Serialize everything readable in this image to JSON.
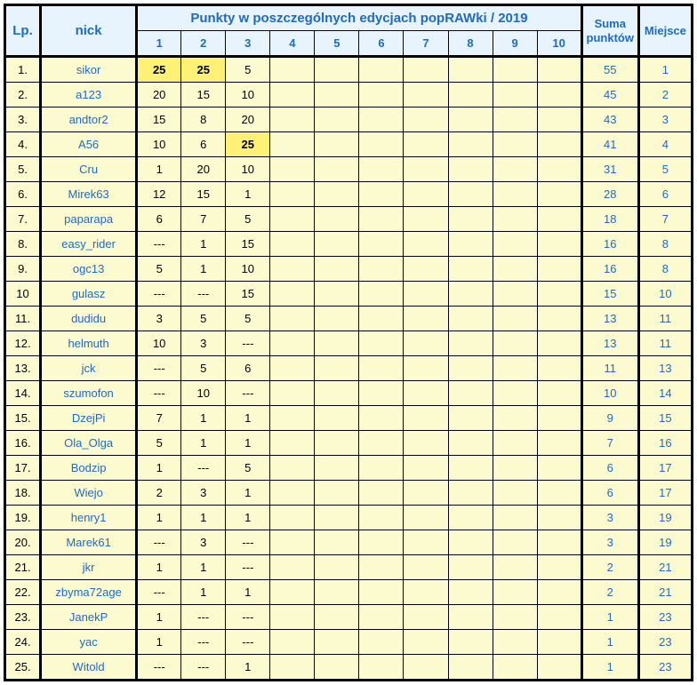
{
  "headers": {
    "lp": "Lp.",
    "nick": "nick",
    "editions_title": "Punkty w poszczególnych edycjach popRAWki / 2019",
    "editions": [
      "1",
      "2",
      "3",
      "4",
      "5",
      "6",
      "7",
      "8",
      "9",
      "10"
    ],
    "sum": "Suma punktów",
    "place": "Miejsce"
  },
  "colors": {
    "header_bg": "#e7f3fd",
    "header_fg": "#1f6bbf",
    "cell_bg": "#fcfbcf",
    "highlight_bg": "#fff176",
    "border": "#000000"
  },
  "col_widths": {
    "lp": 40,
    "nick": 108,
    "edition": 50,
    "sum": 64,
    "place": 60
  },
  "rows": [
    {
      "lp": "1.",
      "nick": "sikor",
      "pts": [
        "25",
        "25",
        "5",
        "",
        "",
        "",
        "",
        "",
        "",
        ""
      ],
      "hl": [
        true,
        true,
        false,
        false,
        false,
        false,
        false,
        false,
        false,
        false
      ],
      "sum": "55",
      "place": "1"
    },
    {
      "lp": "2.",
      "nick": "a123",
      "pts": [
        "20",
        "15",
        "10",
        "",
        "",
        "",
        "",
        "",
        "",
        ""
      ],
      "hl": [
        false,
        false,
        false,
        false,
        false,
        false,
        false,
        false,
        false,
        false
      ],
      "sum": "45",
      "place": "2"
    },
    {
      "lp": "3.",
      "nick": "andtor2",
      "pts": [
        "15",
        "8",
        "20",
        "",
        "",
        "",
        "",
        "",
        "",
        ""
      ],
      "hl": [
        false,
        false,
        false,
        false,
        false,
        false,
        false,
        false,
        false,
        false
      ],
      "sum": "43",
      "place": "3"
    },
    {
      "lp": "4.",
      "nick": "A56",
      "pts": [
        "10",
        "6",
        "25",
        "",
        "",
        "",
        "",
        "",
        "",
        ""
      ],
      "hl": [
        false,
        false,
        true,
        false,
        false,
        false,
        false,
        false,
        false,
        false
      ],
      "sum": "41",
      "place": "4"
    },
    {
      "lp": "5.",
      "nick": "Cru",
      "pts": [
        "1",
        "20",
        "10",
        "",
        "",
        "",
        "",
        "",
        "",
        ""
      ],
      "hl": [
        false,
        false,
        false,
        false,
        false,
        false,
        false,
        false,
        false,
        false
      ],
      "sum": "31",
      "place": "5"
    },
    {
      "lp": "6.",
      "nick": "Mirek63",
      "pts": [
        "12",
        "15",
        "1",
        "",
        "",
        "",
        "",
        "",
        "",
        ""
      ],
      "hl": [
        false,
        false,
        false,
        false,
        false,
        false,
        false,
        false,
        false,
        false
      ],
      "sum": "28",
      "place": "6"
    },
    {
      "lp": "7.",
      "nick": "paparapa",
      "pts": [
        "6",
        "7",
        "5",
        "",
        "",
        "",
        "",
        "",
        "",
        ""
      ],
      "hl": [
        false,
        false,
        false,
        false,
        false,
        false,
        false,
        false,
        false,
        false
      ],
      "sum": "18",
      "place": "7"
    },
    {
      "lp": "8.",
      "nick": "easy_rider",
      "pts": [
        "---",
        "1",
        "15",
        "",
        "",
        "",
        "",
        "",
        "",
        ""
      ],
      "hl": [
        false,
        false,
        false,
        false,
        false,
        false,
        false,
        false,
        false,
        false
      ],
      "sum": "16",
      "place": "8"
    },
    {
      "lp": "9.",
      "nick": "ogc13",
      "pts": [
        "5",
        "1",
        "10",
        "",
        "",
        "",
        "",
        "",
        "",
        ""
      ],
      "hl": [
        false,
        false,
        false,
        false,
        false,
        false,
        false,
        false,
        false,
        false
      ],
      "sum": "16",
      "place": "8"
    },
    {
      "lp": "10",
      "nick": "gulasz",
      "pts": [
        "---",
        "---",
        "15",
        "",
        "",
        "",
        "",
        "",
        "",
        ""
      ],
      "hl": [
        false,
        false,
        false,
        false,
        false,
        false,
        false,
        false,
        false,
        false
      ],
      "sum": "15",
      "place": "10"
    },
    {
      "lp": "11.",
      "nick": "dudidu",
      "pts": [
        "3",
        "5",
        "5",
        "",
        "",
        "",
        "",
        "",
        "",
        ""
      ],
      "hl": [
        false,
        false,
        false,
        false,
        false,
        false,
        false,
        false,
        false,
        false
      ],
      "sum": "13",
      "place": "11"
    },
    {
      "lp": "12.",
      "nick": "helmuth",
      "pts": [
        "10",
        "3",
        "---",
        "",
        "",
        "",
        "",
        "",
        "",
        ""
      ],
      "hl": [
        false,
        false,
        false,
        false,
        false,
        false,
        false,
        false,
        false,
        false
      ],
      "sum": "13",
      "place": "11"
    },
    {
      "lp": "13.",
      "nick": "jck",
      "pts": [
        "---",
        "5",
        "6",
        "",
        "",
        "",
        "",
        "",
        "",
        ""
      ],
      "hl": [
        false,
        false,
        false,
        false,
        false,
        false,
        false,
        false,
        false,
        false
      ],
      "sum": "11",
      "place": "13"
    },
    {
      "lp": "14.",
      "nick": "szumofon",
      "pts": [
        "---",
        "10",
        "---",
        "",
        "",
        "",
        "",
        "",
        "",
        ""
      ],
      "hl": [
        false,
        false,
        false,
        false,
        false,
        false,
        false,
        false,
        false,
        false
      ],
      "sum": "10",
      "place": "14"
    },
    {
      "lp": "15.",
      "nick": "DzejPi",
      "pts": [
        "7",
        "1",
        "1",
        "",
        "",
        "",
        "",
        "",
        "",
        ""
      ],
      "hl": [
        false,
        false,
        false,
        false,
        false,
        false,
        false,
        false,
        false,
        false
      ],
      "sum": "9",
      "place": "15"
    },
    {
      "lp": "16.",
      "nick": "Ola_Olga",
      "pts": [
        "5",
        "1",
        "1",
        "",
        "",
        "",
        "",
        "",
        "",
        ""
      ],
      "hl": [
        false,
        false,
        false,
        false,
        false,
        false,
        false,
        false,
        false,
        false
      ],
      "sum": "7",
      "place": "16"
    },
    {
      "lp": "17.",
      "nick": "Bodzip",
      "pts": [
        "1",
        "---",
        "5",
        "",
        "",
        "",
        "",
        "",
        "",
        ""
      ],
      "hl": [
        false,
        false,
        false,
        false,
        false,
        false,
        false,
        false,
        false,
        false
      ],
      "sum": "6",
      "place": "17"
    },
    {
      "lp": "18.",
      "nick": "Wiejo",
      "pts": [
        "2",
        "3",
        "1",
        "",
        "",
        "",
        "",
        "",
        "",
        ""
      ],
      "hl": [
        false,
        false,
        false,
        false,
        false,
        false,
        false,
        false,
        false,
        false
      ],
      "sum": "6",
      "place": "17"
    },
    {
      "lp": "19.",
      "nick": "henry1",
      "pts": [
        "1",
        "1",
        "1",
        "",
        "",
        "",
        "",
        "",
        "",
        ""
      ],
      "hl": [
        false,
        false,
        false,
        false,
        false,
        false,
        false,
        false,
        false,
        false
      ],
      "sum": "3",
      "place": "19"
    },
    {
      "lp": "20.",
      "nick": "Marek61",
      "pts": [
        "---",
        "3",
        "---",
        "",
        "",
        "",
        "",
        "",
        "",
        ""
      ],
      "hl": [
        false,
        false,
        false,
        false,
        false,
        false,
        false,
        false,
        false,
        false
      ],
      "sum": "3",
      "place": "19"
    },
    {
      "lp": "21.",
      "nick": "jkr",
      "pts": [
        "1",
        "1",
        "---",
        "",
        "",
        "",
        "",
        "",
        "",
        ""
      ],
      "hl": [
        false,
        false,
        false,
        false,
        false,
        false,
        false,
        false,
        false,
        false
      ],
      "sum": "2",
      "place": "21"
    },
    {
      "lp": "22.",
      "nick": "zbyma72age",
      "pts": [
        "---",
        "1",
        "1",
        "",
        "",
        "",
        "",
        "",
        "",
        ""
      ],
      "hl": [
        false,
        false,
        false,
        false,
        false,
        false,
        false,
        false,
        false,
        false
      ],
      "sum": "2",
      "place": "21"
    },
    {
      "lp": "23.",
      "nick": "JanekP",
      "pts": [
        "1",
        "---",
        "---",
        "",
        "",
        "",
        "",
        "",
        "",
        ""
      ],
      "hl": [
        false,
        false,
        false,
        false,
        false,
        false,
        false,
        false,
        false,
        false
      ],
      "sum": "1",
      "place": "23"
    },
    {
      "lp": "24.",
      "nick": "yac",
      "pts": [
        "1",
        "---",
        "---",
        "",
        "",
        "",
        "",
        "",
        "",
        ""
      ],
      "hl": [
        false,
        false,
        false,
        false,
        false,
        false,
        false,
        false,
        false,
        false
      ],
      "sum": "1",
      "place": "23"
    },
    {
      "lp": "25.",
      "nick": "Witold",
      "pts": [
        "---",
        "---",
        "1",
        "",
        "",
        "",
        "",
        "",
        "",
        ""
      ],
      "hl": [
        false,
        false,
        false,
        false,
        false,
        false,
        false,
        false,
        false,
        false
      ],
      "sum": "1",
      "place": "23"
    }
  ]
}
